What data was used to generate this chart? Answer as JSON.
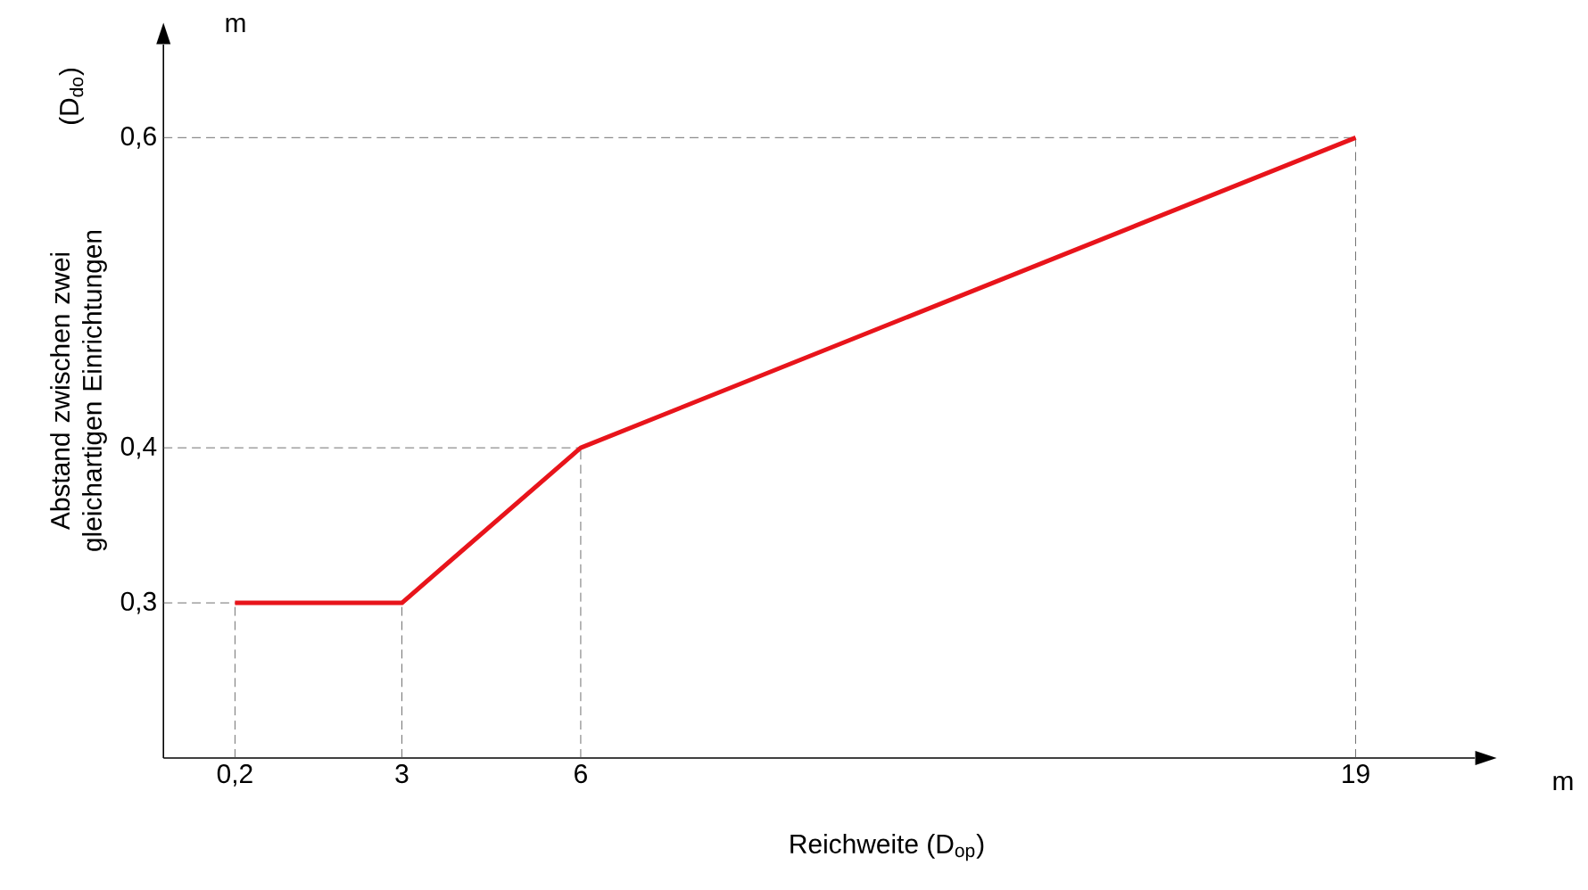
{
  "chart_data": {
    "type": "line",
    "xlabel": "Reichweite (D$_{op}$)",
    "ylabel": "Abstand zwischen zwei gleichartigen Einrichtungen",
    "annotations": [
      "(D$_{do}$)",
      "m",
      "m"
    ],
    "x": [
      0.2,
      3,
      6,
      19
    ],
    "series": [
      {
        "color": "#e8141b",
        "values": [
          0.3,
          0.3,
          0.4,
          0.6
        ]
      }
    ],
    "xlim": [
      -1,
      21
    ],
    "ylim": [
      0.2,
      0.66
    ],
    "xticks": [
      {
        "value": 0.2,
        "label": "0,2"
      },
      3,
      6,
      19
    ],
    "yticks": [
      {
        "value": 0.3,
        "label": "0,3"
      },
      {
        "value": 0.4,
        "label": "0,4"
      },
      {
        "value": 0.6,
        "label": "0,6"
      }
    ],
    "ref_lines": [
      {
        "axis": "x",
        "value": 0.2,
        "line_style": "dashed"
      },
      {
        "axis": "x",
        "value": 3,
        "line_style": "dashed"
      },
      {
        "axis": "x",
        "value": 6,
        "line_style": "dashed"
      },
      {
        "axis": "x",
        "value": 19,
        "line_style": "dashed"
      },
      {
        "axis": "y",
        "value": 0.3,
        "line_style": "dashed"
      },
      {
        "axis": "y",
        "value": 0.4,
        "line_style": "dashed"
      },
      {
        "axis": "y",
        "value": 0.6,
        "line_style": "dashed"
      }
    ],
    "grid": false,
    "marker": "none",
    "line_style": "solid"
  }
}
